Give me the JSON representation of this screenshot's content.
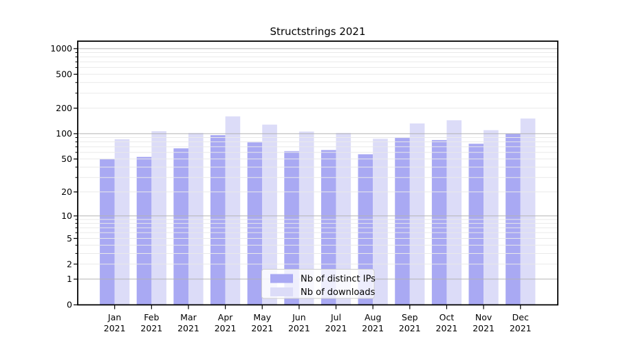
{
  "page": {
    "background": "#ffffff"
  },
  "chart_data": {
    "type": "bar",
    "title": "Structstrings 2021",
    "categories": [
      "Jan",
      "Feb",
      "Mar",
      "Apr",
      "May",
      "Jun",
      "Jul",
      "Aug",
      "Sep",
      "Oct",
      "Nov",
      "Dec"
    ],
    "category_year": "2021",
    "series": [
      {
        "name": "Nb of distinct IPs",
        "color": "#a9a9f3",
        "values": [
          50,
          53,
          67,
          96,
          79,
          62,
          64,
          57,
          89,
          84,
          76,
          100
        ]
      },
      {
        "name": "Nb of downloads",
        "color": "#dcdcf8",
        "values": [
          86,
          107,
          102,
          160,
          128,
          106,
          102,
          87,
          132,
          144,
          110,
          151
        ]
      }
    ],
    "yscale": "log1p",
    "ytick_values": [
      0,
      1,
      2,
      5,
      10,
      20,
      50,
      100,
      200,
      500,
      1000
    ],
    "ylim": [
      0,
      1250
    ],
    "xlabel": "",
    "ylabel": "",
    "grid": true,
    "grid_major_color": "#b3b3b3",
    "grid_minor_color": "#e9e9e9",
    "legend_position": "lower center inside"
  }
}
